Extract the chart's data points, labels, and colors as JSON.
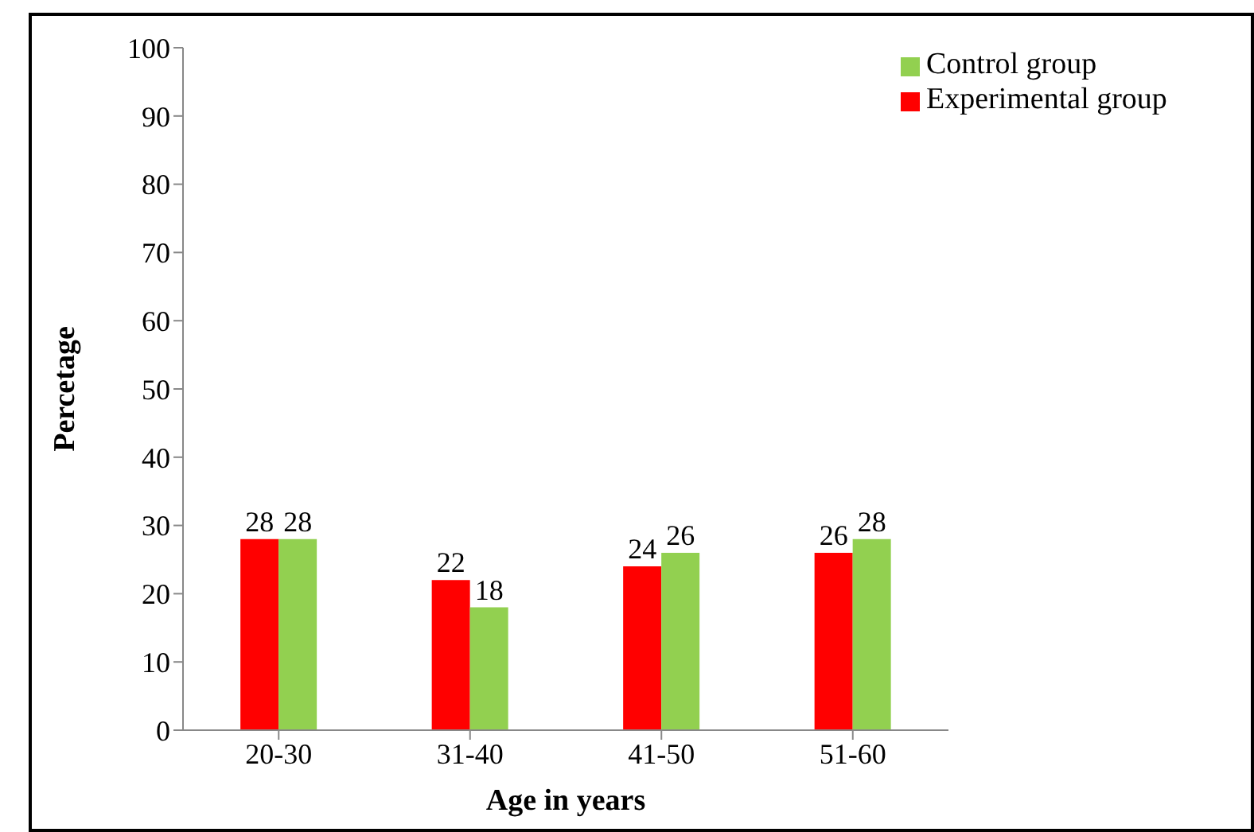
{
  "chart_data": {
    "type": "bar",
    "xlabel": "Age in years",
    "ylabel": "Percetage",
    "categories": [
      "20-30",
      "31-40",
      "41-50",
      "51-60"
    ],
    "series": [
      {
        "name": "Experimental group",
        "color": "#ff0000",
        "values": [
          28,
          22,
          24,
          26
        ]
      },
      {
        "name": "Control group",
        "color": "#92d050",
        "values": [
          28,
          18,
          26,
          28
        ]
      }
    ],
    "ylim": [
      0,
      100
    ],
    "yticks": [
      0,
      10,
      20,
      30,
      40,
      50,
      60,
      70,
      80,
      90,
      100
    ],
    "grid": false,
    "legend": "top right",
    "data_labels": true
  }
}
